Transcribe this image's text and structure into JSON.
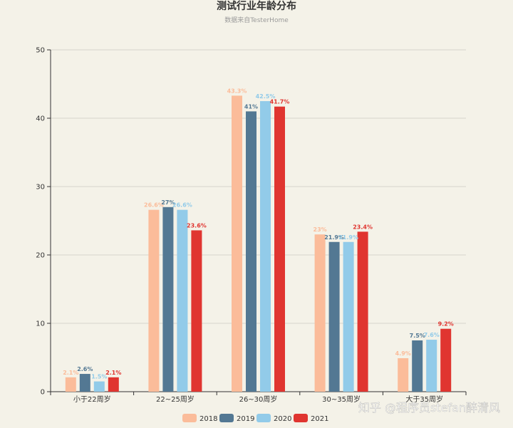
{
  "chart_data": {
    "type": "bar",
    "title": "测试行业年龄分布",
    "subtitle": "数据来自TesterHome",
    "categories": [
      "小于22周岁",
      "22~25周岁",
      "26~30周岁",
      "30~35周岁",
      "大于35周岁"
    ],
    "series": [
      {
        "name": "2018",
        "color": "#fbbc9a",
        "values": [
          2.1,
          26.6,
          43.3,
          23.0,
          4.9
        ],
        "labels": [
          "2.1%",
          "26.6%",
          "43.3%",
          "23%",
          "4.9%"
        ]
      },
      {
        "name": "2019",
        "color": "#537893",
        "values": [
          2.6,
          27.0,
          41.0,
          21.9,
          7.5
        ],
        "labels": [
          "2.6%",
          "27%",
          "41%",
          "21.9%",
          "7.5%"
        ]
      },
      {
        "name": "2020",
        "color": "#92cbe9",
        "values": [
          1.5,
          26.6,
          42.5,
          21.9,
          7.6
        ],
        "labels": [
          "1.5%",
          "26.6%",
          "42.5%",
          "21.9%",
          "7.6%"
        ]
      },
      {
        "name": "2021",
        "color": "#e03530",
        "values": [
          2.1,
          23.6,
          41.7,
          23.4,
          9.2
        ],
        "labels": [
          "2.1%",
          "23.6%",
          "41.7%",
          "23.4%",
          "9.2%"
        ]
      }
    ],
    "y_ticks": [
      "0",
      "10",
      "20",
      "30",
      "40",
      "50"
    ],
    "ylim": [
      0,
      50
    ],
    "grid": true,
    "legend": "bottom",
    "label_colors": [
      "#fbbc9a",
      "#537893",
      "#92cbe9",
      "#e03530"
    ]
  },
  "watermark": "知乎 @程序员stefan醉清风"
}
